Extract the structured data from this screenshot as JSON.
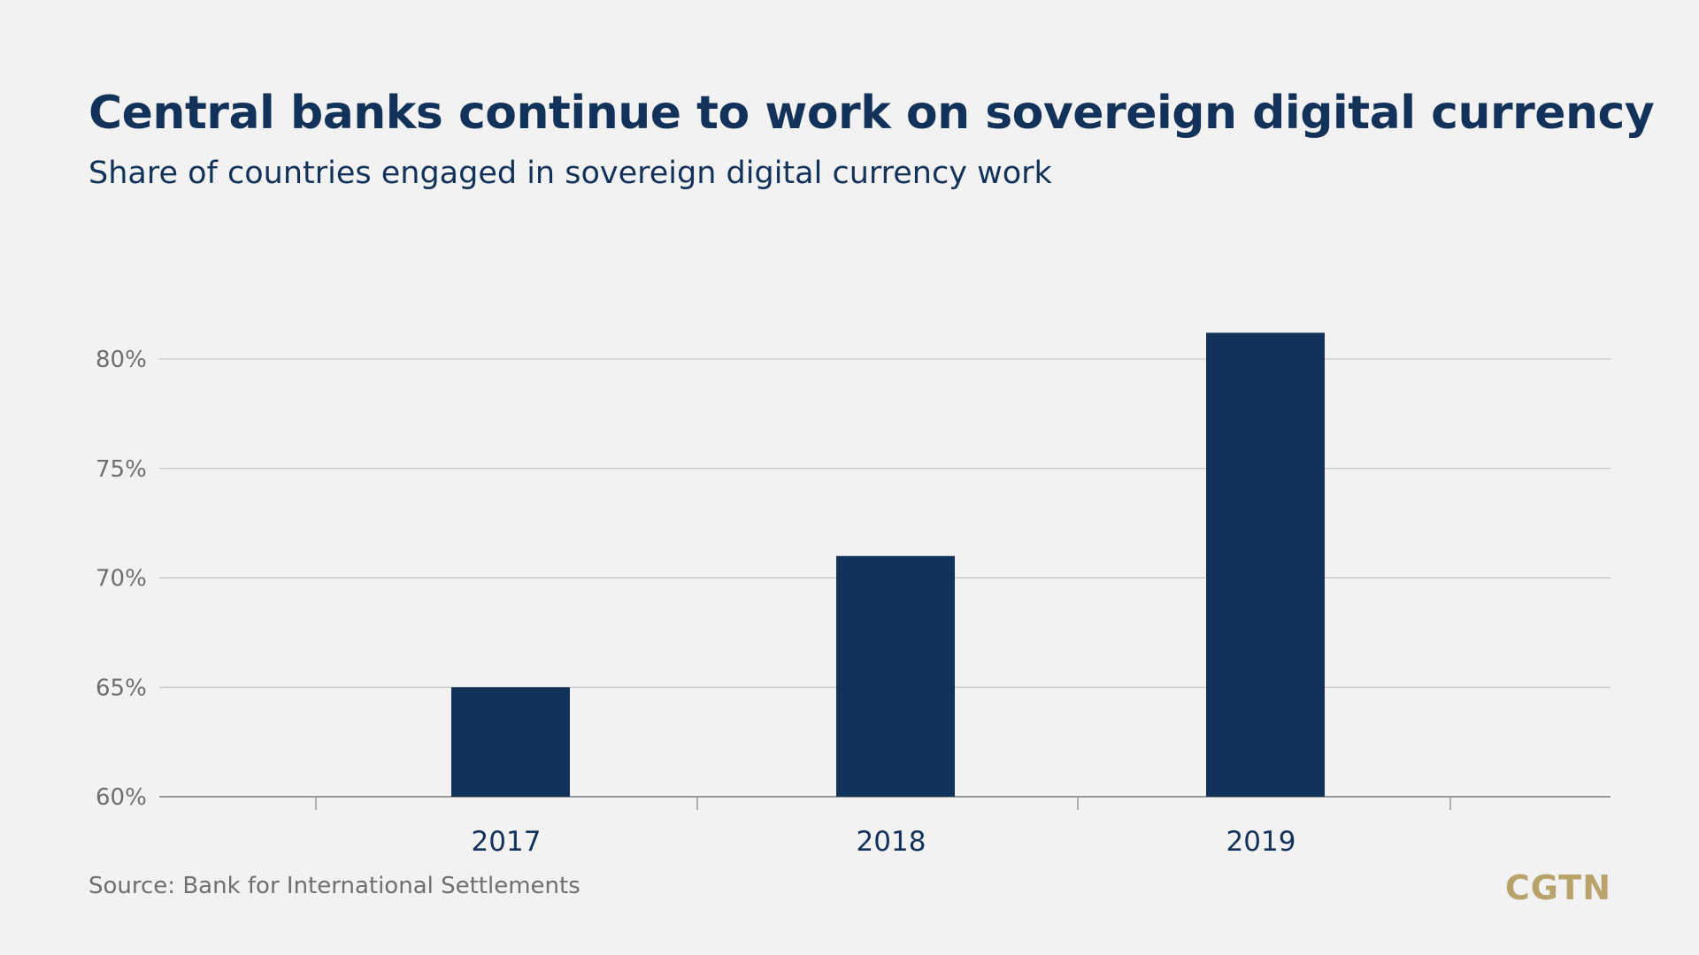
{
  "chart_data": {
    "type": "bar",
    "title": "Central banks continue to work on sovereign digital currency",
    "subtitle": "Share of countries engaged in sovereign digital currency work",
    "categories": [
      "2017",
      "2018",
      "2019"
    ],
    "values": [
      65,
      71,
      81.2
    ],
    "unit": "%",
    "ylim": [
      60,
      85
    ],
    "yticks": [
      60,
      65,
      70,
      75,
      80
    ],
    "ytick_labels": [
      "60%",
      "65%",
      "70%",
      "75%",
      "80%"
    ],
    "xlabel": "",
    "ylabel": "",
    "grid": "horizontal",
    "bar_color": "#13325a"
  },
  "source": "Source: Bank for International Settlements",
  "brand": "CGTN",
  "colors": {
    "background": "#f2f2f2",
    "title": "#13325a",
    "bar": "#13325a",
    "grid": "#bcbcbc",
    "tick_label": "#6f6f6f",
    "brand": "#b8a36b"
  }
}
